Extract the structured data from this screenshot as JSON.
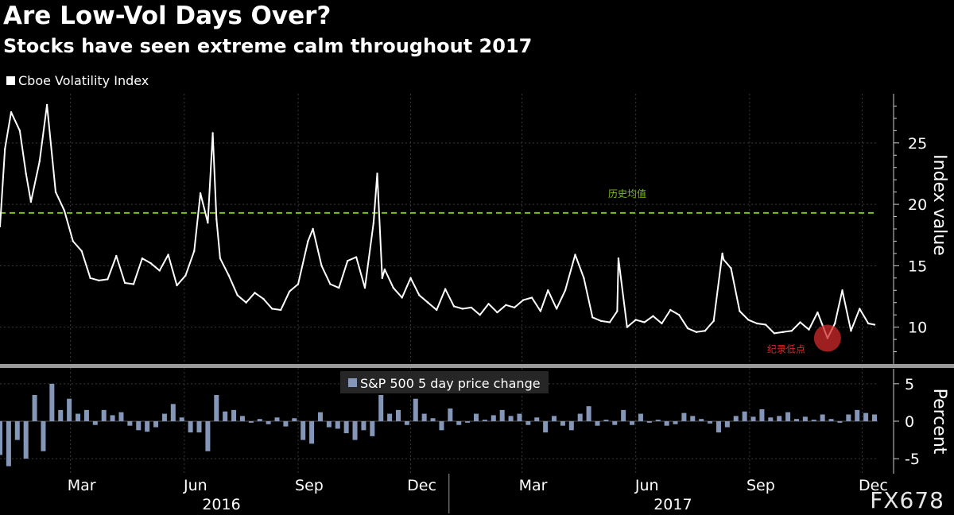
{
  "title": "Are Low-Vol Days Over?",
  "subtitle": "Stocks have seen extreme calm throughout 2017",
  "watermark": "FX678",
  "colors": {
    "vix_line": "#ffffff",
    "mean_line": "#7fbf1f",
    "bars": "#8497b8",
    "annotation": "#d12a2a",
    "grid": "#3a3a3a",
    "divider": "#9a9a9a"
  },
  "chart_data": [
    {
      "type": "line",
      "legend": "Cboe Volatility Index",
      "ylabel": "Index value",
      "ylim": [
        7,
        29
      ],
      "yticks": [
        10,
        15,
        20,
        25
      ],
      "x_range": [
        "2016-01-04",
        "2017-12-11"
      ],
      "month_ticks": [
        {
          "date": "2016-03-01",
          "label": "Mar"
        },
        {
          "date": "2016-06-01",
          "label": "Jun"
        },
        {
          "date": "2016-09-01",
          "label": "Sep"
        },
        {
          "date": "2016-12-01",
          "label": "Dec"
        },
        {
          "date": "2017-03-01",
          "label": "Mar"
        },
        {
          "date": "2017-06-01",
          "label": "Jun"
        },
        {
          "date": "2017-09-01",
          "label": "Sep"
        },
        {
          "date": "2017-12-01",
          "label": "Dec"
        }
      ],
      "year_labels": [
        {
          "label": "2016",
          "date": "2016-07-01"
        },
        {
          "label": "2017",
          "date": "2017-07-01"
        }
      ],
      "year_divider": "2017-01-01",
      "historical_mean": {
        "value": 19.3,
        "label": "历史均值"
      },
      "record_low": {
        "date": "2017-11-03",
        "value": 9.1,
        "label": "纪录低点"
      },
      "series": [
        {
          "x": [
            "2016-01-04",
            "2016-01-08",
            "2016-01-13",
            "2016-01-20",
            "2016-01-25",
            "2016-01-29",
            "2016-02-05",
            "2016-02-11",
            "2016-02-18",
            "2016-02-25",
            "2016-03-03",
            "2016-03-10",
            "2016-03-17",
            "2016-03-24",
            "2016-03-31",
            "2016-04-07",
            "2016-04-14",
            "2016-04-21",
            "2016-04-28",
            "2016-05-05",
            "2016-05-12",
            "2016-05-19",
            "2016-05-26",
            "2016-06-02",
            "2016-06-09",
            "2016-06-14",
            "2016-06-20",
            "2016-06-24",
            "2016-06-27",
            "2016-06-30",
            "2016-07-07",
            "2016-07-14",
            "2016-07-21",
            "2016-07-28",
            "2016-08-04",
            "2016-08-11",
            "2016-08-18",
            "2016-08-25",
            "2016-09-01",
            "2016-09-09",
            "2016-09-13",
            "2016-09-20",
            "2016-09-27",
            "2016-10-04",
            "2016-10-11",
            "2016-10-18",
            "2016-10-25",
            "2016-11-01",
            "2016-11-04",
            "2016-11-08",
            "2016-11-10",
            "2016-11-17",
            "2016-11-24",
            "2016-12-01",
            "2016-12-08",
            "2016-12-15",
            "2016-12-22",
            "2016-12-29",
            "2017-01-05",
            "2017-01-12",
            "2017-01-19",
            "2017-01-26",
            "2017-02-02",
            "2017-02-09",
            "2017-02-16",
            "2017-02-23",
            "2017-03-02",
            "2017-03-09",
            "2017-03-16",
            "2017-03-22",
            "2017-03-29",
            "2017-04-05",
            "2017-04-13",
            "2017-04-20",
            "2017-04-27",
            "2017-05-04",
            "2017-05-11",
            "2017-05-17",
            "2017-05-18",
            "2017-05-25",
            "2017-06-01",
            "2017-06-08",
            "2017-06-15",
            "2017-06-22",
            "2017-06-29",
            "2017-07-06",
            "2017-07-13",
            "2017-07-20",
            "2017-07-27",
            "2017-08-03",
            "2017-08-10",
            "2017-08-11",
            "2017-08-17",
            "2017-08-24",
            "2017-08-31",
            "2017-09-07",
            "2017-09-14",
            "2017-09-21",
            "2017-09-28",
            "2017-10-05",
            "2017-10-12",
            "2017-10-19",
            "2017-10-26",
            "2017-11-03",
            "2017-11-09",
            "2017-11-15",
            "2017-11-22",
            "2017-11-29",
            "2017-12-06",
            "2017-12-11"
          ],
          "values": [
            18.2,
            24.5,
            27.5,
            26.0,
            22.5,
            20.2,
            23.5,
            28.1,
            21.0,
            19.5,
            17.0,
            16.2,
            14.0,
            13.8,
            13.9,
            15.8,
            13.6,
            13.5,
            15.6,
            15.2,
            14.6,
            15.9,
            13.4,
            14.2,
            16.2,
            20.9,
            18.5,
            25.8,
            18.8,
            15.6,
            14.2,
            12.6,
            12.0,
            12.8,
            12.3,
            11.5,
            11.4,
            12.9,
            13.5,
            17.0,
            18.0,
            15.0,
            13.5,
            13.2,
            15.4,
            15.7,
            13.2,
            18.5,
            22.5,
            14.0,
            14.7,
            13.2,
            12.4,
            14.0,
            12.6,
            12.0,
            11.4,
            13.1,
            11.7,
            11.5,
            11.6,
            11.0,
            11.9,
            11.2,
            11.8,
            11.6,
            12.2,
            12.4,
            11.3,
            13.0,
            11.5,
            13.0,
            15.9,
            14.0,
            10.8,
            10.5,
            10.4,
            11.3,
            15.6,
            10.0,
            10.6,
            10.4,
            10.9,
            10.3,
            11.4,
            11.0,
            9.9,
            9.6,
            9.7,
            10.5,
            16.0,
            15.5,
            14.8,
            11.3,
            10.6,
            10.3,
            10.2,
            9.5,
            9.6,
            9.7,
            10.4,
            9.8,
            11.2,
            9.1,
            10.3,
            13.0,
            9.7,
            11.5,
            10.3,
            10.2
          ]
        }
      ]
    },
    {
      "type": "bar",
      "legend": "S&P 500 5 day price change",
      "ylabel": "Percent",
      "ylim": [
        -7,
        7
      ],
      "yticks": [
        -5,
        0,
        5
      ],
      "x_range": [
        "2016-01-04",
        "2017-12-11"
      ],
      "x": [
        "2016-01-04",
        "2016-01-11",
        "2016-01-18",
        "2016-01-25",
        "2016-02-01",
        "2016-02-08",
        "2016-02-15",
        "2016-02-22",
        "2016-02-29",
        "2016-03-07",
        "2016-03-14",
        "2016-03-21",
        "2016-03-28",
        "2016-04-04",
        "2016-04-11",
        "2016-04-18",
        "2016-04-25",
        "2016-05-02",
        "2016-05-09",
        "2016-05-16",
        "2016-05-23",
        "2016-05-30",
        "2016-06-06",
        "2016-06-13",
        "2016-06-20",
        "2016-06-27",
        "2016-07-04",
        "2016-07-11",
        "2016-07-18",
        "2016-07-25",
        "2016-08-01",
        "2016-08-08",
        "2016-08-15",
        "2016-08-22",
        "2016-08-29",
        "2016-09-05",
        "2016-09-12",
        "2016-09-19",
        "2016-09-26",
        "2016-10-03",
        "2016-10-10",
        "2016-10-17",
        "2016-10-24",
        "2016-10-31",
        "2016-11-07",
        "2016-11-14",
        "2016-11-21",
        "2016-11-28",
        "2016-12-05",
        "2016-12-12",
        "2016-12-19",
        "2016-12-26",
        "2017-01-02",
        "2017-01-09",
        "2017-01-16",
        "2017-01-23",
        "2017-01-30",
        "2017-02-06",
        "2017-02-13",
        "2017-02-20",
        "2017-02-27",
        "2017-03-06",
        "2017-03-13",
        "2017-03-20",
        "2017-03-27",
        "2017-04-03",
        "2017-04-10",
        "2017-04-17",
        "2017-04-24",
        "2017-05-01",
        "2017-05-08",
        "2017-05-15",
        "2017-05-22",
        "2017-05-29",
        "2017-06-05",
        "2017-06-12",
        "2017-06-19",
        "2017-06-26",
        "2017-07-03",
        "2017-07-10",
        "2017-07-17",
        "2017-07-24",
        "2017-07-31",
        "2017-08-07",
        "2017-08-14",
        "2017-08-21",
        "2017-08-28",
        "2017-09-04",
        "2017-09-11",
        "2017-09-18",
        "2017-09-25",
        "2017-10-02",
        "2017-10-09",
        "2017-10-16",
        "2017-10-23",
        "2017-10-30",
        "2017-11-06",
        "2017-11-13",
        "2017-11-20",
        "2017-11-27",
        "2017-12-04",
        "2017-12-11"
      ],
      "values": [
        -4.5,
        -6.0,
        -2.5,
        -5.0,
        3.5,
        -4.0,
        5.0,
        1.5,
        3.0,
        1.0,
        1.5,
        -0.5,
        1.5,
        0.8,
        1.2,
        -0.6,
        -1.2,
        -1.4,
        -0.8,
        1.0,
        2.3,
        0.5,
        -1.5,
        -1.5,
        -4.0,
        3.5,
        1.3,
        1.5,
        0.7,
        -0.2,
        0.3,
        -0.4,
        0.5,
        -0.7,
        0.4,
        -2.5,
        -3.0,
        1.2,
        -0.8,
        -1.0,
        -1.6,
        -2.5,
        -1.2,
        -2.0,
        3.5,
        1.0,
        1.5,
        -0.5,
        3.0,
        1.0,
        0.4,
        -1.2,
        1.7,
        -0.5,
        -0.2,
        1.0,
        0.2,
        0.8,
        1.5,
        0.7,
        1.0,
        -0.5,
        0.5,
        -1.5,
        0.7,
        -0.6,
        -1.2,
        1.0,
        2.0,
        -0.6,
        0.2,
        -0.5,
        1.5,
        -0.5,
        1.0,
        -0.2,
        0.2,
        -0.6,
        -0.4,
        1.1,
        0.7,
        0.3,
        -0.3,
        -1.5,
        -0.8,
        0.7,
        1.3,
        0.6,
        1.6,
        0.5,
        0.7,
        1.2,
        0.3,
        0.6,
        0.2,
        0.9,
        0.3,
        -0.2,
        0.9,
        1.5,
        1.1,
        0.9
      ]
    }
  ]
}
